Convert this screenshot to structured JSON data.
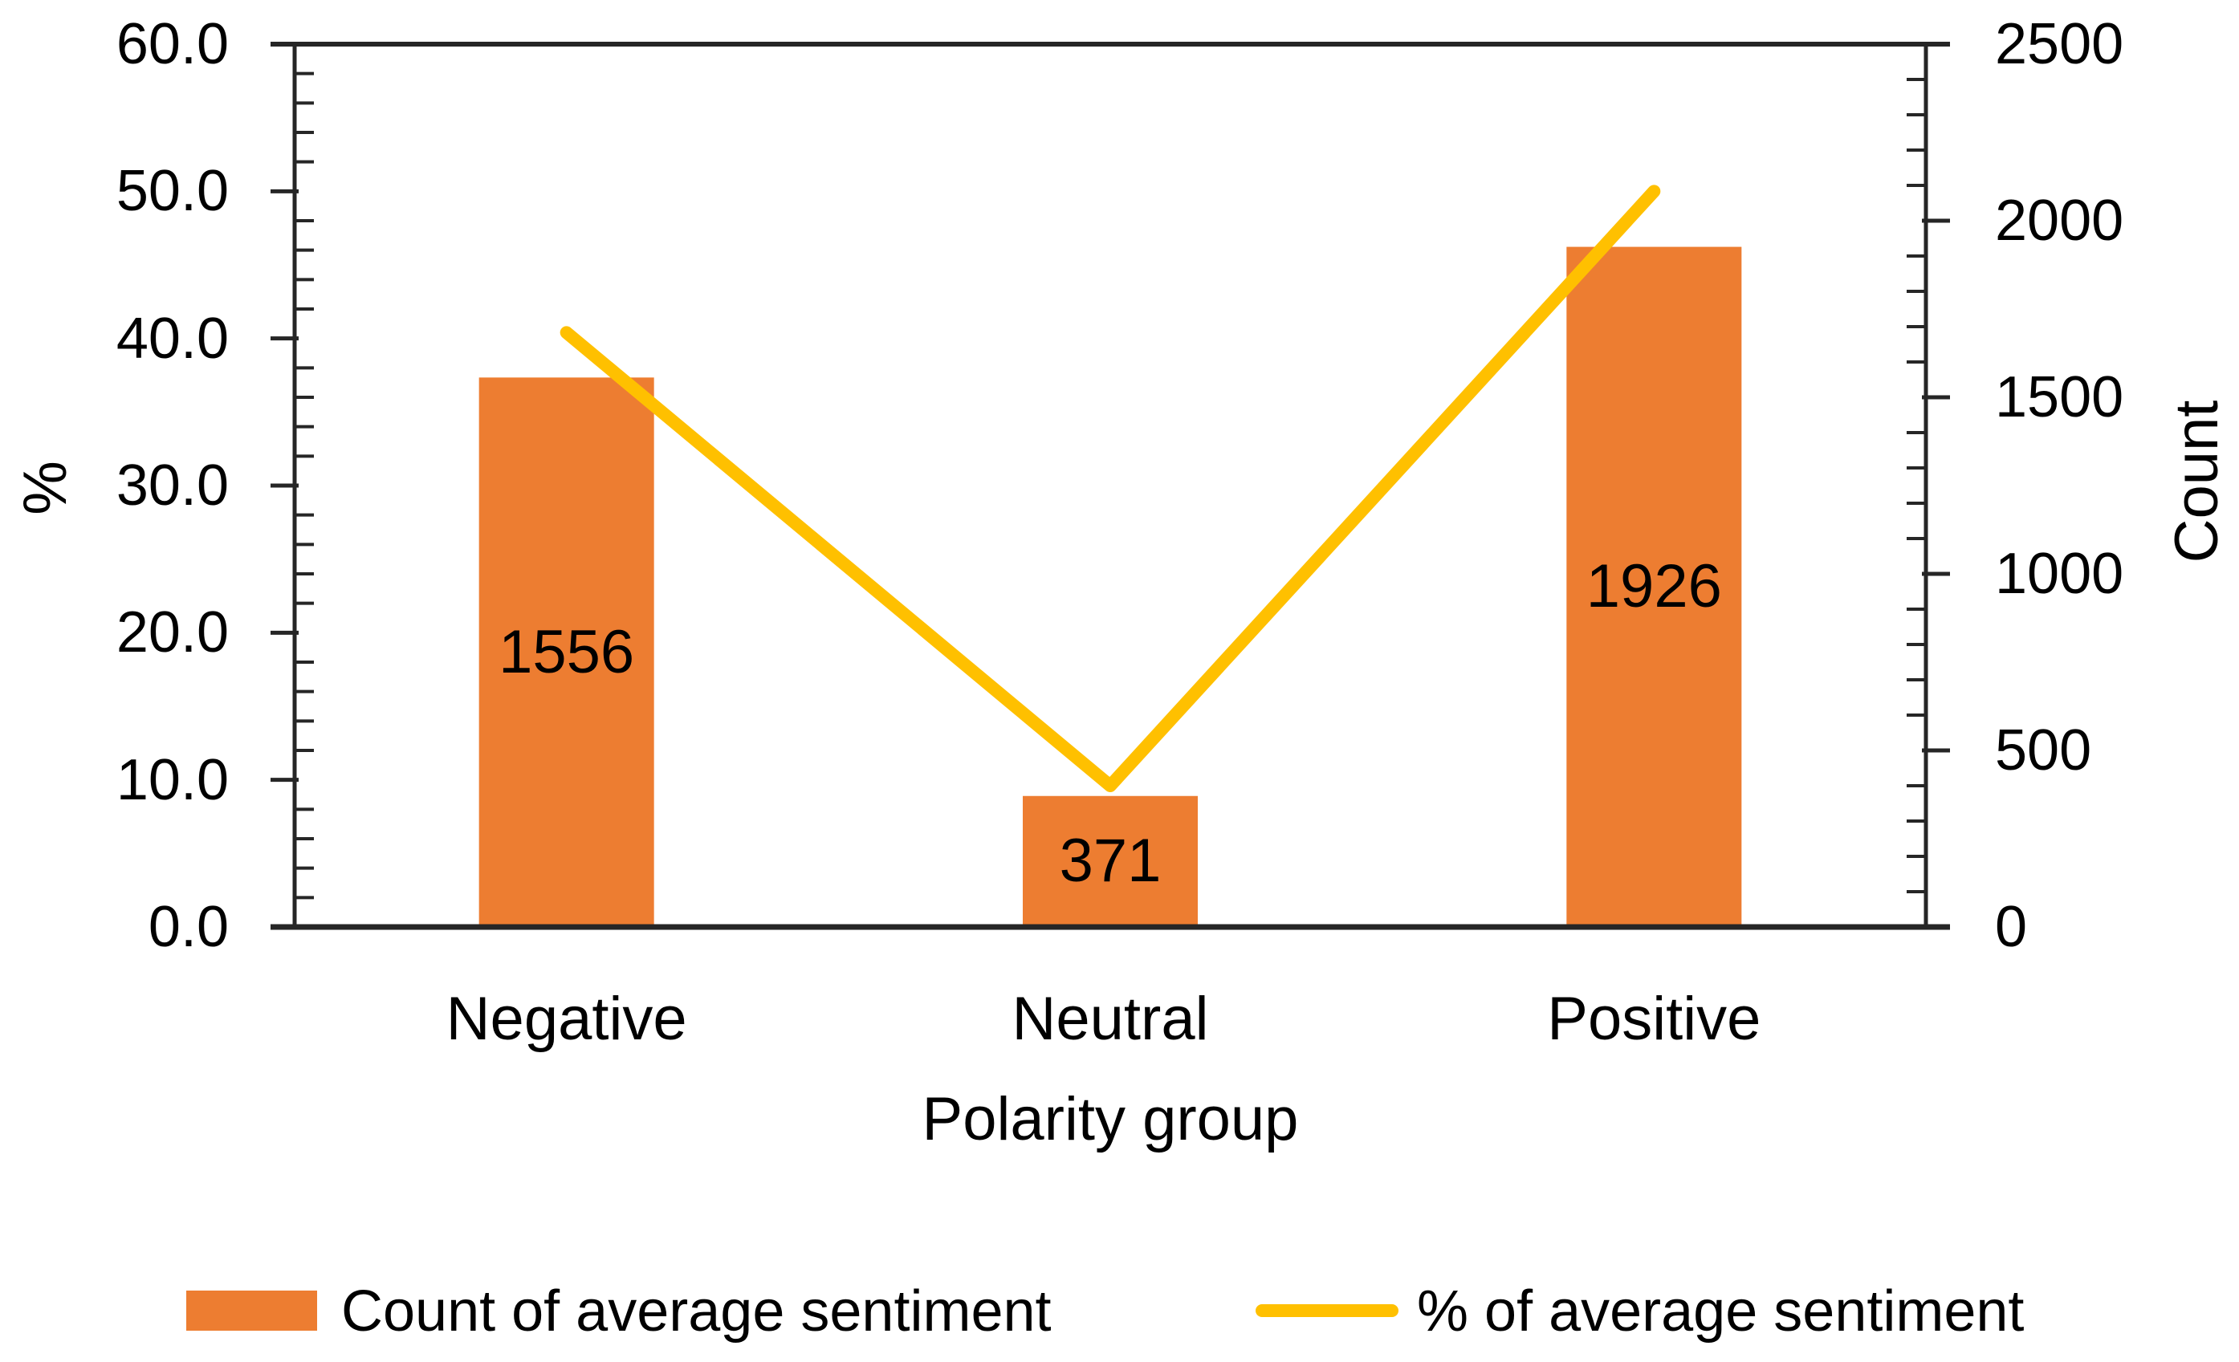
{
  "chart_data": {
    "type": "bar",
    "subtype": "combo-bar-line-dual-axis",
    "categories": [
      "Negative",
      "Neutral",
      "Positive"
    ],
    "series": [
      {
        "name": "Count of average sentiment",
        "type": "bar",
        "axis": "right",
        "values": [
          1556,
          371,
          1926
        ],
        "color": "#ED7D31"
      },
      {
        "name": "% of average sentiment",
        "type": "line",
        "axis": "left",
        "values": [
          40.4,
          9.6,
          50.0
        ],
        "color": "#FFC000"
      }
    ],
    "bar_labels": [
      "1556",
      "371",
      "1926"
    ],
    "xlabel": "Polarity group",
    "left_axis": {
      "title": "%",
      "min": 0,
      "max": 60,
      "major_step": 10,
      "minor_step": 2,
      "tick_labels": [
        "0.0",
        "10.0",
        "20.0",
        "30.0",
        "40.0",
        "50.0",
        "60.0"
      ]
    },
    "right_axis": {
      "title": "Count",
      "min": 0,
      "max": 2500,
      "major_step": 500,
      "minor_step": 100,
      "tick_labels": [
        "0",
        "500",
        "1000",
        "1500",
        "2000",
        "2500"
      ]
    },
    "grid": "none",
    "legend_position": "bottom",
    "legend": [
      {
        "swatch": "bar",
        "label": "Count of average sentiment"
      },
      {
        "swatch": "line",
        "label": "% of average sentiment"
      }
    ],
    "axis_color": "#262626",
    "text_color": "#000000"
  }
}
